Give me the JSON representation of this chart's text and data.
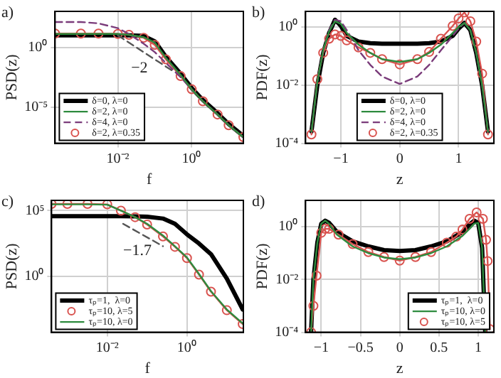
{
  "chart_data": [
    {
      "type": "line",
      "title": "a)",
      "xlabel": "f",
      "ylabel": "PSD(z)",
      "log": "xy",
      "grid": true,
      "legend": "bottom left",
      "xlim": [
        0.0002,
        25
      ],
      "ylim": [
        1e-08,
        1000
      ],
      "xticks": [
        {
          "value": 0.01,
          "label": "10⁻²"
        },
        {
          "value": 1,
          "label": "10⁰"
        }
      ],
      "yticks": [
        {
          "value": 1e-05,
          "label": "10⁻⁵"
        },
        {
          "value": 1,
          "label": "10⁰"
        }
      ],
      "x": [
        0.0002,
        0.001,
        0.003,
        0.01,
        0.02,
        0.05,
        0.1,
        0.2,
        0.5,
        1,
        2,
        5,
        10,
        25
      ],
      "annotations": [
        "−2"
      ],
      "series": [
        {
          "name": "δ=0, λ=0",
          "color": "#000000",
          "values": [
            10,
            10,
            10,
            10,
            10,
            8.9,
            3.2,
            0.16,
            0.0063,
            0.0004,
            4e-05,
            3.2e-06,
            4e-07,
            4e-08
          ]
        },
        {
          "name": "δ=2, λ=0",
          "color": "#2e8b3e",
          "values": [
            13,
            13,
            13,
            13,
            11,
            7.1,
            2.5,
            0.13,
            0.005,
            0.00032,
            3.2e-05,
            2.5e-06,
            3.2e-07,
            3.2e-08
          ]
        },
        {
          "name": "δ=4, λ=0",
          "color": "#7a3b7a",
          "line_style": "dashed",
          "values": [
            130,
            130,
            100,
            40,
            13,
            2,
            0.4,
            0.05,
            0.0032,
            0.00032,
            3.2e-05,
            2.5e-06,
            3.2e-07,
            3.2e-08
          ]
        },
        {
          "name": "δ=2, λ=0.35",
          "color": "#d9534f",
          "marker": "circle",
          "values": [
            14,
            14,
            14,
            13,
            11,
            6.3,
            1.6,
            0.1,
            0.004,
            0.00032,
            3.2e-05,
            2.5e-06,
            3.2e-07,
            3.2e-08
          ]
        },
        {
          "type": "line",
          "color": "#555555",
          "line_style": "dashed",
          "x": [
            0.01,
            0.3
          ],
          "values": [
            10,
            0.011
          ]
        }
      ]
    },
    {
      "type": "line",
      "title": "b)",
      "xlabel": "z",
      "ylabel": "PDF(z)",
      "log": "y",
      "grid": true,
      "legend": "bottom",
      "xlim": [
        -1.6,
        1.6
      ],
      "ylim": [
        0.0001,
        3.5
      ],
      "xticks": [
        {
          "value": -1,
          "label": "−1"
        },
        0,
        1
      ],
      "yticks": [
        {
          "value": 0.0001,
          "label": "10⁻⁴"
        },
        {
          "value": 0.01,
          "label": "10⁻²"
        },
        {
          "value": 1,
          "label": "10⁰"
        }
      ],
      "x": [
        -1.5,
        -1.4,
        -1.3,
        -1.2,
        -1.1,
        -1,
        -0.9,
        -0.7,
        -0.5,
        -0.3,
        0,
        0.3,
        0.5,
        0.7,
        0.9,
        1,
        1.1,
        1.2,
        1.3,
        1.4,
        1.5
      ],
      "series": [
        {
          "name": "δ=0, λ=0",
          "color": "#000000",
          "values": [
            0.00025,
            0.01,
            0.13,
            0.63,
            1.8,
            1.1,
            0.5,
            0.32,
            0.28,
            0.27,
            0.27,
            0.27,
            0.28,
            0.32,
            0.5,
            0.89,
            1.4,
            0.79,
            0.13,
            0.01,
            0.00025
          ]
        },
        {
          "name": "δ=2, λ=0",
          "color": "#2e8b3e",
          "values": [
            0.00025,
            0.013,
            0.16,
            0.71,
            1.6,
            1.3,
            0.63,
            0.25,
            0.13,
            0.079,
            0.063,
            0.079,
            0.13,
            0.25,
            0.63,
            1,
            1.4,
            0.79,
            0.13,
            0.01,
            0.00025
          ]
        },
        {
          "name": "δ=4, λ=0",
          "color": "#7a3b7a",
          "line_style": "dashed",
          "values": [
            0.00025,
            0.013,
            0.16,
            0.79,
            1.8,
            1.6,
            0.79,
            0.16,
            0.05,
            0.02,
            0.011,
            0.02,
            0.05,
            0.16,
            0.5,
            0.89,
            1.4,
            0.79,
            0.13,
            0.01,
            0.00025
          ]
        },
        {
          "name": "δ=2, λ=0.35",
          "color": "#d9534f",
          "marker": "circle",
          "values": [
            0.0002,
            0.016,
            0.13,
            0.4,
            0.56,
            0.5,
            0.35,
            0.2,
            0.13,
            0.079,
            0.052,
            0.079,
            0.14,
            0.4,
            1.1,
            2,
            3.2,
            1.6,
            0.32,
            0.025,
            0.0002
          ]
        }
      ]
    },
    {
      "type": "line",
      "title": "c)",
      "xlabel": "f",
      "ylabel": "PSD(z)",
      "log": "xy",
      "grid": true,
      "legend": "bottom left",
      "xlim": [
        0.0004,
        26
      ],
      "ylim": [
        6e-05,
        600000.0
      ],
      "xticks": [
        {
          "value": 0.01,
          "label": "10⁻²"
        },
        {
          "value": 1,
          "label": "10⁰"
        }
      ],
      "yticks": [
        {
          "value": 1,
          "label": "10⁰"
        },
        {
          "value": 100000,
          "label": "10⁵"
        }
      ],
      "x": [
        0.0004,
        0.001,
        0.0032,
        0.01,
        0.022,
        0.05,
        0.1,
        0.25,
        0.5,
        1,
        2,
        4,
        10,
        25
      ],
      "annotations": [
        "−1.7"
      ],
      "series": [
        {
          "name": "τₚ=1,  λ=0",
          "color": "#000000",
          "values": [
            38000,
            38000,
            38000,
            38000,
            38000,
            37000,
            35000,
            25000,
            10000,
            1600,
            320,
            50,
            0.7,
            0.0032
          ]
        },
        {
          "name": "τₚ=10, λ=5",
          "color": "#d9534f",
          "marker": "circle",
          "values": [
            320000,
            320000,
            320000,
            300000,
            100000,
            32000,
            8900,
            1100,
            180,
            25,
            1.4,
            0.071,
            0.0028,
            0.00025
          ]
        },
        {
          "name": "τₚ=10, λ=0",
          "color": "#2e8b3e",
          "values": [
            300000,
            300000,
            300000,
            280000,
            100000,
            32000,
            10000,
            1300,
            200,
            28,
            1.6,
            0.079,
            0.0032,
            0.00028
          ]
        },
        {
          "type": "line",
          "color": "#555555",
          "line_style": "dashed",
          "x": [
            0.025,
            0.25
          ],
          "values": [
            10000,
            200
          ]
        }
      ]
    },
    {
      "type": "line",
      "title": "d)",
      "xlabel": "z",
      "ylabel": "PDF(z)",
      "log": "y",
      "grid": true,
      "legend": "bottom right",
      "xlim": [
        -1.2,
        1.2
      ],
      "ylim": [
        0.0001,
        10
      ],
      "xticks": [
        {
          "value": -1,
          "label": "−1"
        },
        {
          "value": -0.5,
          "label": "−0.5"
        },
        0,
        0.5,
        1
      ],
      "yticks": [
        {
          "value": 0.0001,
          "label": "10⁻⁴"
        },
        {
          "value": 0.01,
          "label": "10⁻²"
        },
        {
          "value": 1,
          "label": "10⁰"
        }
      ],
      "x": [
        -1.13,
        -1.1,
        -1.05,
        -1,
        -0.95,
        -0.9,
        -0.8,
        -0.6,
        -0.4,
        -0.2,
        0,
        0.2,
        0.4,
        0.6,
        0.8,
        0.9,
        0.95,
        1,
        1.05,
        1.09
      ],
      "series": [
        {
          "name": "τₚ=1,  λ=0",
          "color": "#000000",
          "values": [
            0.0001,
            0.01,
            0.25,
            1.3,
            1.7,
            1.4,
            0.63,
            0.28,
            0.18,
            0.13,
            0.12,
            0.13,
            0.18,
            0.28,
            0.63,
            1.3,
            1.7,
            1.4,
            0.16,
            0.0001
          ]
        },
        {
          "name": "τₚ=10, λ=0",
          "color": "#2e8b3e",
          "values": [
            0.0001,
            0.01,
            0.25,
            1.3,
            1.7,
            1.3,
            0.5,
            0.18,
            0.1,
            0.068,
            0.059,
            0.068,
            0.1,
            0.18,
            0.45,
            0.89,
            1.3,
            1.4,
            0.16,
            0.0001
          ]
        },
        {
          "name": "τₚ=10, λ=5",
          "color": "#d9534f",
          "marker": "circle",
          "x": [
            -1.13,
            -1.1,
            -1.06,
            -1,
            -0.95,
            -0.9,
            -0.78,
            -0.6,
            -0.4,
            -0.2,
            0,
            0.2,
            0.4,
            0.6,
            0.72,
            0.8,
            0.89,
            0.98,
            1.06,
            1.1,
            1.12,
            1.15
          ],
          "values": [
            0.0001,
            0.001,
            0.014,
            0.59,
            0.83,
            0.83,
            0.5,
            0.22,
            0.11,
            0.071,
            0.052,
            0.071,
            0.11,
            0.25,
            0.42,
            0.79,
            2,
            3.5,
            2,
            0.32,
            0.05,
            0.00013
          ]
        }
      ]
    }
  ]
}
